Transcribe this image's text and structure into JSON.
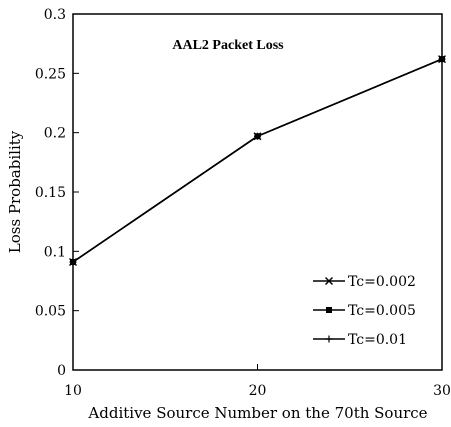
{
  "chart_data": {
    "type": "line",
    "title": "AAL2 Packet Loss",
    "xlabel": "Additive Source Number on the 70th Source",
    "ylabel": "Loss Probability",
    "x": [
      10,
      20,
      30
    ],
    "xlim": [
      10,
      30
    ],
    "ylim": [
      0,
      0.3
    ],
    "x_ticks": [
      "10",
      "20",
      "30"
    ],
    "y_ticks": [
      "0",
      "0.05",
      "0.1",
      "0.15",
      "0.2",
      "0.25",
      "0.3"
    ],
    "grid": false,
    "legend_position": "bottom-right",
    "series": [
      {
        "name": "Tc=0.002",
        "marker": "x",
        "values": [
          0.091,
          0.197,
          0.262
        ]
      },
      {
        "name": "Tc=0.005",
        "marker": "square",
        "values": [
          0.091,
          0.197,
          0.262
        ]
      },
      {
        "name": "Tc=0.01",
        "marker": "plus",
        "values": [
          0.091,
          0.197,
          0.262
        ]
      }
    ]
  }
}
